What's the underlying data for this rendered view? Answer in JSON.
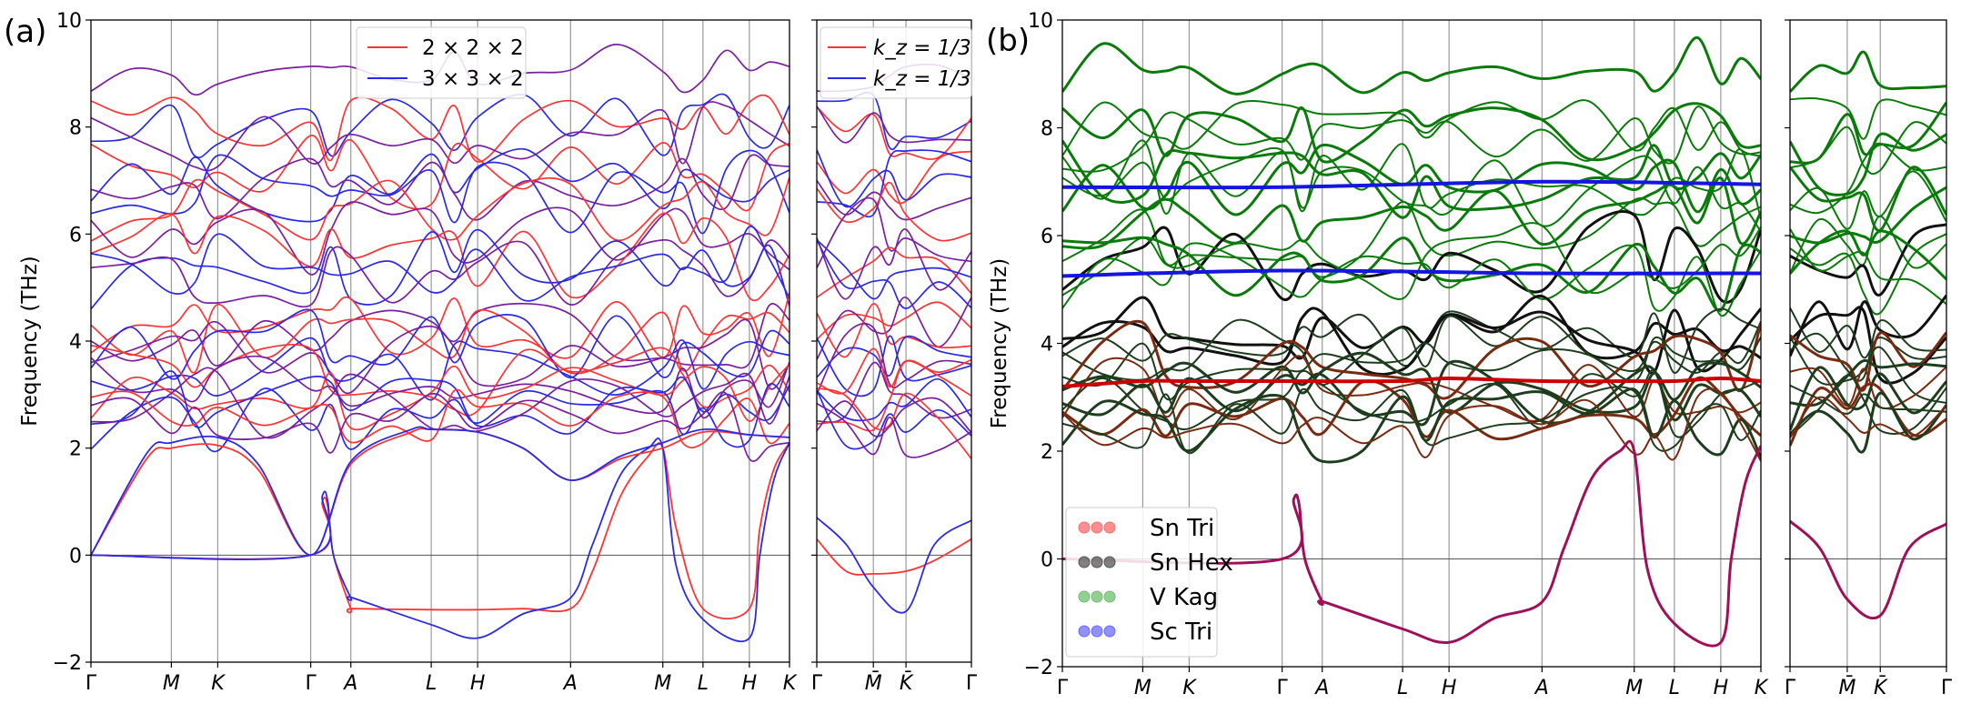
{
  "figure": {
    "panel_labels": [
      "(a)",
      "(b)"
    ]
  },
  "chart_data": [
    {
      "type": "line",
      "panel": "(a)",
      "title": "",
      "ylabel": "Frequency (THz)",
      "ylim": [
        -2,
        10
      ],
      "yticks": [
        "−2",
        "0",
        "2",
        "4",
        "6",
        "8",
        "10"
      ],
      "grid": "vertical lines at high-symmetry points",
      "path_main": {
        "labels": [
          "Γ",
          "M",
          "K",
          "Γ",
          "A",
          "L",
          "H",
          "A",
          "M",
          "L",
          "H",
          "K"
        ],
        "x": [
          0,
          0.577,
          0.91,
          1.577,
          1.865,
          2.442,
          2.775,
          3.442,
          4.104,
          4.392,
          4.725,
          5.013
        ]
      },
      "path_side": {
        "labels": [
          "Γ̄",
          "M̄",
          "K̄",
          "Γ̄"
        ],
        "x": [
          0,
          0.577,
          0.91,
          1.577
        ]
      },
      "legend_main": {
        "position": "top-center",
        "entries": [
          {
            "label": "2 × 2 × 2",
            "color": "#ff3333"
          },
          {
            "label": "3 × 3 × 2",
            "color": "#2a2ae8"
          }
        ]
      },
      "legend_side": {
        "position": "top-right",
        "entries": [
          {
            "label": "k_z = 1/3",
            "color": "#ff3333"
          },
          {
            "label": "k_z = 1/3",
            "color": "#2a2ae8"
          }
        ]
      },
      "series": [
        {
          "name": "2×2×2 imaginary mode",
          "color": "#ff3333",
          "x": [
            0,
            1.577,
            1.66,
            1.7,
            1.74,
            1.865,
            1.88,
            2.442,
            2.775,
            3.1,
            3.442,
            3.6,
            3.8,
            4.0,
            4.104,
            4.2,
            4.392,
            4.725,
            4.8,
            4.9,
            5.013
          ],
          "y": [
            0,
            0,
            1.0,
            0.9,
            0,
            -1.0,
            -1.0,
            -1.02,
            -1.02,
            -1.0,
            -1.0,
            -0.3,
            1.1,
            1.85,
            2.0,
            0.5,
            -1.0,
            -1.0,
            0.5,
            1.6,
            2.1
          ]
        },
        {
          "name": "3×3×2 imaginary mode",
          "color": "#2a2ae8",
          "x": [
            0,
            1.577,
            1.66,
            1.7,
            1.74,
            1.865,
            1.88,
            2.442,
            2.775,
            3.1,
            3.442,
            3.6,
            3.8,
            4.0,
            4.104,
            4.2,
            4.392,
            4.725,
            4.8,
            4.9,
            5.013
          ],
          "y": [
            0,
            0,
            1.1,
            1.0,
            0,
            -0.8,
            -0.8,
            -1.3,
            -1.55,
            -1.1,
            -0.8,
            0.2,
            1.5,
            2.0,
            2.0,
            -0.2,
            -1.2,
            -1.55,
            0.0,
            1.4,
            2.1
          ]
        },
        {
          "name": "2×2×2 acoustic",
          "color": "#ff3333",
          "x": [
            0,
            0.4,
            0.577,
            0.91,
            1.2,
            1.577,
            1.865,
            2.3,
            2.442,
            2.775,
            3.1,
            3.442,
            3.8,
            4.104,
            4.392,
            4.725,
            5.013
          ],
          "y": [
            0,
            1.8,
            2.0,
            2.05,
            1.6,
            0,
            1.7,
            2.3,
            2.35,
            2.3,
            2.0,
            1.4,
            1.8,
            2.0,
            2.3,
            2.25,
            2.2
          ]
        },
        {
          "name": "3×3×2 acoustic",
          "color": "#2a2ae8",
          "x": [
            0,
            0.4,
            0.577,
            0.91,
            1.2,
            1.577,
            1.865,
            2.3,
            2.442,
            2.775,
            3.1,
            3.442,
            3.8,
            4.104,
            4.392,
            4.725,
            5.013
          ],
          "y": [
            0,
            1.9,
            2.1,
            2.2,
            1.7,
            0,
            1.75,
            2.35,
            2.35,
            2.3,
            2.0,
            1.4,
            1.85,
            2.1,
            2.35,
            2.25,
            2.2
          ]
        },
        {
          "name": "2×2×2 side mode",
          "color": "#ff3333",
          "panel_part": "side",
          "x": [
            0,
            0.3,
            0.577,
            0.91,
            1.2,
            1.577
          ],
          "y": [
            0.3,
            -0.3,
            -0.35,
            -0.3,
            -0.1,
            0.3
          ]
        },
        {
          "name": "3×3×2 side mode",
          "color": "#2a2ae8",
          "panel_part": "side",
          "x": [
            0,
            0.3,
            0.577,
            0.91,
            1.2,
            1.577
          ],
          "y": [
            0.7,
            0.2,
            -0.6,
            -1.05,
            0.2,
            0.65
          ]
        }
      ],
      "dense_bands_note": "many optical branches between 2 and 9.2 THz rendered procedurally",
      "notable_levels": [
        9.15,
        8.0,
        7.0,
        6.8,
        5.3,
        5.4,
        4.2,
        3.9,
        3.2,
        2.9,
        2.5
      ]
    },
    {
      "type": "line",
      "panel": "(b)",
      "title": "",
      "ylabel": "Frequency (THz)",
      "ylim": [
        -2,
        10
      ],
      "yticks": [
        "−2",
        "0",
        "2",
        "4",
        "6",
        "8",
        "10"
      ],
      "path_main": {
        "labels": [
          "Γ",
          "M",
          "K",
          "Γ",
          "A",
          "L",
          "H",
          "A",
          "M",
          "L",
          "H",
          "K"
        ],
        "x": [
          0,
          0.577,
          0.91,
          1.577,
          1.865,
          2.442,
          2.775,
          3.442,
          4.104,
          4.392,
          4.725,
          5.013
        ]
      },
      "path_side": {
        "labels": [
          "Γ̄",
          "M̄",
          "K̄",
          "Γ̄"
        ],
        "x": [
          0,
          0.577,
          0.91,
          1.577
        ]
      },
      "legend": {
        "position": "lower-left",
        "entries": [
          {
            "label": "Sn Tri",
            "color": "#ff6b6b"
          },
          {
            "label": "Sn Hex",
            "color": "#555555"
          },
          {
            "label": "V Kag",
            "color": "#6fbf6f"
          },
          {
            "label": "Sc Tri",
            "color": "#6b6bff"
          }
        ]
      },
      "band_colors": {
        "Sn Tri": "#cc0000",
        "Sn Hex": "#111111",
        "V Kag": "#0a7a0a",
        "Sc Tri": "#1515e0",
        "imaginary": "#a0105a"
      },
      "series": [
        {
          "name": "imaginary mode",
          "color": "#a0105a",
          "x": [
            0,
            1.577,
            1.66,
            1.7,
            1.74,
            1.865,
            1.88,
            2.442,
            2.775,
            3.1,
            3.442,
            3.6,
            3.8,
            4.0,
            4.104,
            4.2,
            4.392,
            4.725,
            4.8,
            4.9,
            5.013
          ],
          "y": [
            0,
            0,
            1.1,
            1.0,
            0,
            -0.8,
            -0.8,
            -1.3,
            -1.55,
            -1.1,
            -0.8,
            0.2,
            1.5,
            2.0,
            2.0,
            -0.2,
            -1.2,
            -1.55,
            0.0,
            1.4,
            2.1
          ]
        },
        {
          "name": "imaginary side",
          "color": "#a0105a",
          "panel_part": "side",
          "x": [
            0,
            0.3,
            0.577,
            0.91,
            1.2,
            1.577
          ],
          "y": [
            0.7,
            0.2,
            -0.75,
            -1.05,
            0.2,
            0.65
          ]
        },
        {
          "name": "Sc Tri band upper",
          "color": "#1515e0",
          "x": [
            0,
            1.577,
            3.442,
            5.013
          ],
          "y": [
            6.9,
            6.9,
            7.0,
            6.95
          ]
        },
        {
          "name": "Sc Tri band lower",
          "color": "#1515e0",
          "x": [
            0,
            1.577,
            3.442,
            5.013
          ],
          "y": [
            5.25,
            5.35,
            5.3,
            5.3
          ]
        },
        {
          "name": "Sn Tri band",
          "color": "#cc0000",
          "x": [
            0,
            0.577,
            0.91,
            1.577,
            2.442,
            2.775,
            3.442,
            4.104,
            4.392,
            4.725,
            5.013
          ],
          "y": [
            3.2,
            3.3,
            3.3,
            3.3,
            3.3,
            3.35,
            3.3,
            3.3,
            3.3,
            3.35,
            3.3
          ]
        }
      ]
    }
  ]
}
